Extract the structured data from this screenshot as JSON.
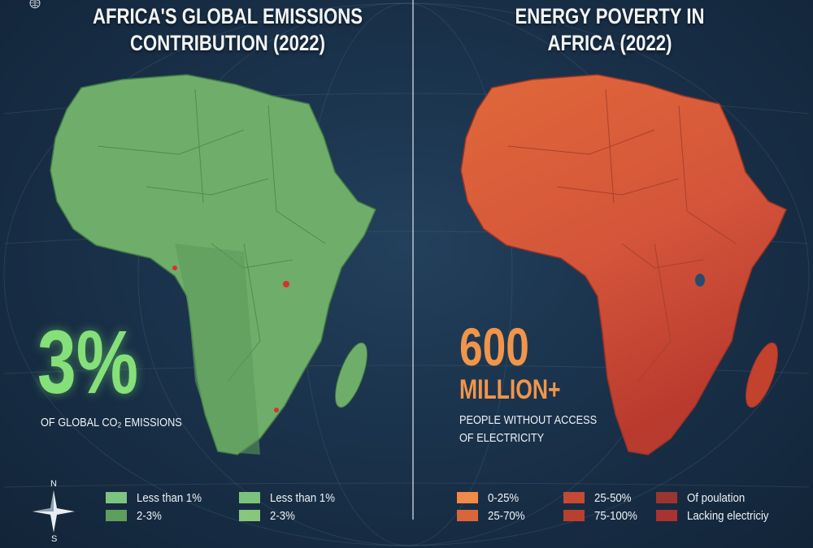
{
  "left": {
    "title_line1": "AFRICA'S GLOBAL EMISSIONS",
    "title_line2": "CONTRIBUTION (2022)",
    "stat_value": "3%",
    "stat_label": "OF GLOBAL CO₂ EMISSIONS",
    "map_color": "#6fae6a",
    "legend": [
      {
        "label": "Less than 1%",
        "color": "#7dc47e"
      },
      {
        "label": "2-3%",
        "color": "#5f9f5e"
      },
      {
        "label": "Less than 1%",
        "color": "#7cc27b"
      },
      {
        "label": "2-3%",
        "color": "#86c77d"
      }
    ]
  },
  "right": {
    "title_line1": "ENERGY POVERTY IN",
    "title_line2": "AFRICA (2022)",
    "stat_value": "600",
    "stat_value2": "MILLION+",
    "stat_label_line1": "PEOPLE WITHOUT ACCESS",
    "stat_label_line2": "OF ELECTRICITY",
    "map_color_north": "#e0683a",
    "map_color_south": "#c2422e",
    "legend": [
      {
        "label": "0-25%",
        "color": "#f08a45"
      },
      {
        "label": "25-70%",
        "color": "#d9663a"
      },
      {
        "label": "25-50%",
        "color": "#c44a34"
      },
      {
        "label": "75-100%",
        "color": "#b8402f"
      },
      {
        "label": "Of poulation",
        "color": "#9b3530"
      },
      {
        "label": "Lacking electriciy",
        "color": "#a83331"
      }
    ]
  },
  "compass": {
    "north": "N",
    "south": "S"
  },
  "colors": {
    "background": "#1a324b",
    "green_accent": "#86e07a",
    "orange_accent": "#f0954a"
  }
}
